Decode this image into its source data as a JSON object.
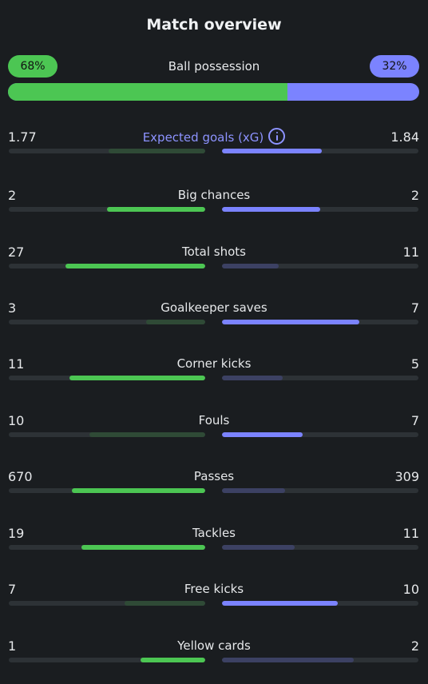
{
  "title": "Match overview",
  "colors": {
    "home": "#4cc653",
    "home_dim": "#2f4a36",
    "away": "#7b83ff",
    "away_dim": "#3c4163",
    "track": "#2d3236"
  },
  "possession": {
    "label": "Ball possession",
    "home": "68%",
    "away": "32%",
    "home_fraction": 0.68
  },
  "stats": [
    {
      "label": "Expected goals (xG)",
      "home": "1.77",
      "away": "1.84",
      "home_fraction": 0.49,
      "away_fraction": 0.51,
      "leader": "away",
      "info_icon": true
    },
    {
      "label": "Big chances",
      "home": "2",
      "away": "2",
      "home_fraction": 0.5,
      "away_fraction": 0.5,
      "leader": "both"
    },
    {
      "label": "Total shots",
      "home": "27",
      "away": "11",
      "home_fraction": 0.71,
      "away_fraction": 0.29,
      "leader": "home"
    },
    {
      "label": "Goalkeeper saves",
      "home": "3",
      "away": "7",
      "home_fraction": 0.3,
      "away_fraction": 0.7,
      "leader": "away"
    },
    {
      "label": "Corner kicks",
      "home": "11",
      "away": "5",
      "home_fraction": 0.69,
      "away_fraction": 0.31,
      "leader": "home"
    },
    {
      "label": "Fouls",
      "home": "10",
      "away": "7",
      "home_fraction": 0.59,
      "away_fraction": 0.41,
      "leader": "away"
    },
    {
      "label": "Passes",
      "home": "670",
      "away": "309",
      "home_fraction": 0.68,
      "away_fraction": 0.32,
      "leader": "home"
    },
    {
      "label": "Tackles",
      "home": "19",
      "away": "11",
      "home_fraction": 0.63,
      "away_fraction": 0.37,
      "leader": "home"
    },
    {
      "label": "Free kicks",
      "home": "7",
      "away": "10",
      "home_fraction": 0.41,
      "away_fraction": 0.59,
      "leader": "away"
    },
    {
      "label": "Yellow cards",
      "home": "1",
      "away": "2",
      "home_fraction": 0.33,
      "away_fraction": 0.67,
      "leader": "home"
    }
  ]
}
